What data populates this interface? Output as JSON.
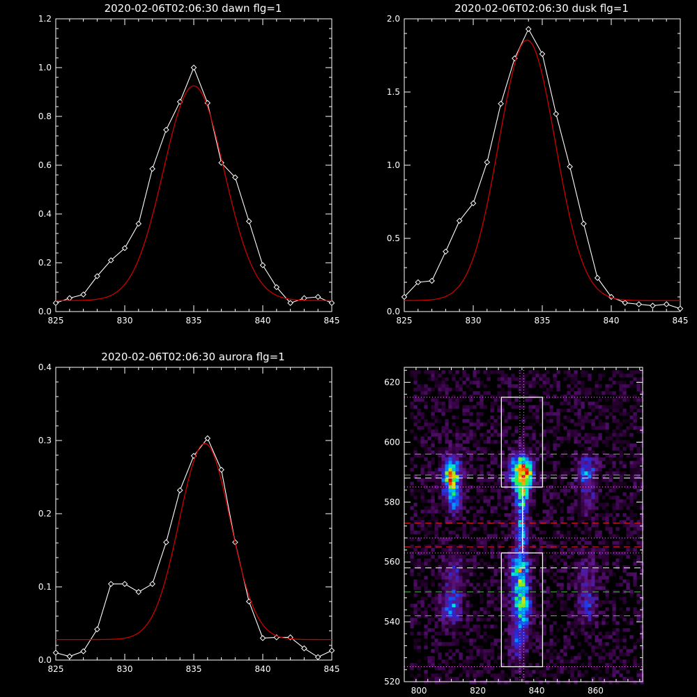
{
  "colors": {
    "background": "#000000",
    "axis": "#ffffff",
    "data_line": "#ffffff",
    "fit_line": "#cc0000",
    "green_dash": "#22dd22",
    "red_dash": "#dd2222",
    "white_dash": "#ffffff",
    "dotted": "#ff88ff",
    "box": "#ffffff"
  },
  "chart_data": [
    {
      "type": "line",
      "title": "2020-02-06T02:06:30 dawn flg=1",
      "xlim": [
        825,
        845
      ],
      "ylim": [
        0,
        1.2
      ],
      "xticks": [
        "825",
        "830",
        "835",
        "840",
        "845"
      ],
      "yticks": [
        "0.0",
        "0.2",
        "0.4",
        "0.6",
        "0.8",
        "1.0",
        "1.2"
      ],
      "series": [
        {
          "style": "data",
          "x": [
            825,
            826,
            827,
            828,
            829,
            830,
            831,
            832,
            833,
            834,
            835,
            836,
            837,
            838,
            839,
            840,
            841,
            842,
            843,
            844,
            845
          ],
          "y": [
            0.035,
            0.055,
            0.07,
            0.145,
            0.21,
            0.26,
            0.36,
            0.585,
            0.745,
            0.86,
            1.0,
            0.855,
            0.61,
            0.55,
            0.37,
            0.19,
            0.1,
            0.035,
            0.055,
            0.06,
            0.035
          ]
        },
        {
          "style": "fit",
          "gauss": {
            "a": 0.88,
            "mu": 835.0,
            "sigma": 2.2,
            "c": 0.045
          }
        }
      ]
    },
    {
      "type": "line",
      "title": "2020-02-06T02:06:30 dusk flg=1",
      "xlim": [
        825,
        845
      ],
      "ylim": [
        0,
        2.0
      ],
      "xticks": [
        "825",
        "830",
        "835",
        "840",
        "845"
      ],
      "yticks": [
        "0.0",
        "0.5",
        "1.0",
        "1.5",
        "2.0"
      ],
      "series": [
        {
          "style": "data",
          "x": [
            825,
            826,
            827,
            828,
            829,
            830,
            831,
            832,
            833,
            834,
            835,
            836,
            837,
            838,
            839,
            840,
            841,
            842,
            843,
            844,
            845
          ],
          "y": [
            0.1,
            0.2,
            0.21,
            0.41,
            0.62,
            0.74,
            1.02,
            1.42,
            1.73,
            1.93,
            1.76,
            1.35,
            0.99,
            0.6,
            0.23,
            0.1,
            0.06,
            0.05,
            0.04,
            0.05,
            0.02
          ]
        },
        {
          "style": "fit",
          "gauss": {
            "a": 1.78,
            "mu": 833.9,
            "sigma": 2.05,
            "c": 0.075
          }
        }
      ]
    },
    {
      "type": "line",
      "title": "2020-02-06T02:06:30 aurora flg=1",
      "xlim": [
        825,
        845
      ],
      "ylim": [
        0,
        0.4
      ],
      "xticks": [
        "825",
        "830",
        "835",
        "840",
        "845"
      ],
      "yticks": [
        "0.0",
        "0.1",
        "0.2",
        "0.3",
        "0.4"
      ],
      "series": [
        {
          "style": "data",
          "x": [
            825,
            826,
            827,
            828,
            829,
            830,
            831,
            832,
            833,
            834,
            835,
            836,
            837,
            838,
            839,
            840,
            841,
            842,
            843,
            844,
            845
          ],
          "y": [
            0.01,
            0.005,
            0.012,
            0.042,
            0.104,
            0.104,
            0.093,
            0.104,
            0.161,
            0.232,
            0.279,
            0.303,
            0.26,
            0.161,
            0.08,
            0.03,
            0.031,
            0.031,
            0.016,
            0.004,
            0.013
          ]
        },
        {
          "style": "fit",
          "gauss": {
            "a": 0.268,
            "mu": 835.8,
            "sigma": 1.85,
            "c": 0.028
          }
        }
      ]
    },
    {
      "type": "heatmap",
      "title": "",
      "xlim": [
        795,
        876
      ],
      "ylim": [
        520,
        625
      ],
      "xticks": [
        "800",
        "820",
        "840",
        "860"
      ],
      "yticks": [
        "520",
        "540",
        "560",
        "580",
        "600",
        "620"
      ],
      "bright_spots": [
        {
          "x": 811,
          "y": 589,
          "sx": 2.2,
          "sy": 4.5,
          "amp": 0.75
        },
        {
          "x": 812,
          "y": 581,
          "sx": 1.8,
          "sy": 4.0,
          "amp": 0.35
        },
        {
          "x": 835,
          "y": 590,
          "sx": 2.6,
          "sy": 4.0,
          "amp": 1.0
        },
        {
          "x": 835,
          "y": 581,
          "sx": 1.6,
          "sy": 4.0,
          "amp": 0.55
        },
        {
          "x": 835,
          "y": 570,
          "sx": 1.5,
          "sy": 4.0,
          "amp": 0.45
        },
        {
          "x": 834,
          "y": 557,
          "sx": 2.3,
          "sy": 5.0,
          "amp": 0.6
        },
        {
          "x": 835,
          "y": 545,
          "sx": 2.2,
          "sy": 4.5,
          "amp": 0.62
        },
        {
          "x": 834,
          "y": 533,
          "sx": 2.0,
          "sy": 5.0,
          "amp": 0.32
        },
        {
          "x": 812,
          "y": 557,
          "sx": 2.5,
          "sy": 5.0,
          "amp": 0.22
        },
        {
          "x": 811,
          "y": 545,
          "sx": 2.3,
          "sy": 4.0,
          "amp": 0.42
        },
        {
          "x": 857,
          "y": 590,
          "sx": 2.4,
          "sy": 4.0,
          "amp": 0.38
        },
        {
          "x": 857,
          "y": 580,
          "sx": 2.0,
          "sy": 4.0,
          "amp": 0.18
        },
        {
          "x": 857,
          "y": 555,
          "sx": 2.6,
          "sy": 6.0,
          "amp": 0.16
        },
        {
          "x": 857,
          "y": 545,
          "sx": 2.2,
          "sy": 4.0,
          "amp": 0.24
        },
        {
          "x": 874,
          "y": 590,
          "sx": 1.5,
          "sy": 3.0,
          "amp": 0.12
        }
      ],
      "hlines": [
        {
          "y": 596,
          "color": "green",
          "style": "dashed"
        },
        {
          "y": 589,
          "color": "green",
          "style": "dashed"
        },
        {
          "y": 588,
          "color": "white",
          "style": "dashed"
        },
        {
          "y": 573,
          "color": "red",
          "style": "dashed"
        },
        {
          "y": 565,
          "color": "red",
          "style": "dashed"
        },
        {
          "y": 558,
          "color": "white",
          "style": "dashed"
        },
        {
          "y": 550,
          "color": "green",
          "style": "dashed"
        },
        {
          "y": 542,
          "color": "green",
          "style": "dashed"
        },
        {
          "y": 615,
          "color": "pink",
          "style": "dotted"
        },
        {
          "y": 585,
          "color": "pink",
          "style": "dotted"
        },
        {
          "y": 568,
          "color": "pink",
          "style": "dotted"
        },
        {
          "y": 563,
          "color": "pink",
          "style": "dotted"
        },
        {
          "y": 525,
          "color": "pink",
          "style": "dotted"
        }
      ],
      "vlines": [
        {
          "x": 834.3,
          "color": "pink",
          "style": "dotted"
        },
        {
          "x": 835.6,
          "color": "pink",
          "style": "dotted"
        }
      ],
      "boxes": [
        {
          "x0": 828,
          "x1": 842,
          "y0": 585,
          "y1": 615
        },
        {
          "x0": 828,
          "x1": 842,
          "y0": 525,
          "y1": 563
        }
      ]
    }
  ]
}
